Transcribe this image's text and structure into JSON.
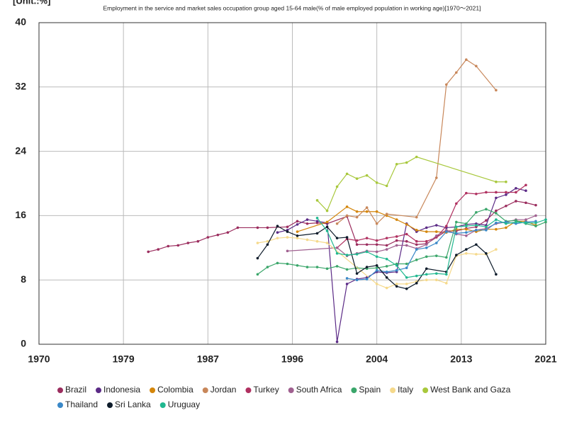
{
  "chart_data": {
    "type": "line",
    "title": "Employment in the service and market sales occupation group aged 15-64 male(% of male employed population in working age)[1970～2021]",
    "y_label": "[Unit.:%]",
    "xlim": [
      1970,
      2021
    ],
    "xticks": [
      1970,
      {
        "value": 1978.5,
        "label": "1979"
      },
      1987,
      {
        "value": 1995.5,
        "label": "1996"
      },
      2004,
      {
        "value": 2012.5,
        "label": "2013"
      },
      2021
    ],
    "ylim": [
      0,
      40
    ],
    "yticks": [
      0,
      8,
      16,
      24,
      32,
      40
    ],
    "grid": true,
    "legend": "bottom",
    "series": [
      {
        "name": "Brazil",
        "color": "#9b2d5e",
        "x": [
          1981,
          1982,
          1983,
          1984,
          1985,
          1986,
          1987,
          1988,
          1989,
          1990,
          1992,
          1993,
          1995,
          1996,
          1997,
          1998,
          1999,
          2001,
          2002,
          2003,
          2004,
          2005,
          2006,
          2007,
          2008,
          2009,
          2011,
          2012,
          2013,
          2014,
          2015,
          2016,
          2017,
          2018,
          2019,
          2020
        ],
        "values": [
          11.5,
          11.8,
          12.2,
          12.3,
          12.6,
          12.8,
          13.3,
          13.6,
          13.9,
          14.5,
          14.5,
          14.5,
          14.6,
          15.3,
          15.0,
          15.1,
          15.0,
          15.9,
          12.4,
          12.4,
          12.4,
          12.3,
          12.9,
          12.8,
          12.4,
          12.5,
          14.1,
          14.1,
          14.4,
          14.6,
          15.4,
          16.6,
          17.2,
          17.8,
          17.6,
          17.3
        ]
      },
      {
        "name": "Indonesia",
        "color": "#5b2a86",
        "x": [
          1994,
          1995,
          1996,
          1997,
          1998,
          1999,
          2000,
          2001,
          2002,
          2003,
          2004,
          2005,
          2006,
          2007,
          2008,
          2009,
          2010,
          2011,
          2012,
          2013,
          2014,
          2015,
          2016,
          2017,
          2018,
          2019
        ],
        "values": [
          13.9,
          14.2,
          14.9,
          15.5,
          15.3,
          15.1,
          0.3,
          7.5,
          8.1,
          8.3,
          9.0,
          8.9,
          9.0,
          15.0,
          14.0,
          14.5,
          14.8,
          14.5,
          14.6,
          14.9,
          15.0,
          14.8,
          18.2,
          18.6,
          19.4,
          19.1
        ]
      },
      {
        "name": "Colombia",
        "color": "#d4860b",
        "x": [
          1996,
          1999,
          2001,
          2002,
          2003,
          2004,
          2005,
          2006,
          2007,
          2008,
          2009,
          2010,
          2011,
          2012,
          2013,
          2014,
          2015,
          2016,
          2017,
          2018,
          2019,
          2020
        ],
        "values": [
          14.0,
          15.2,
          17.1,
          16.5,
          16.5,
          16.5,
          16.0,
          15.5,
          14.9,
          14.2,
          14.0,
          14.0,
          13.9,
          14.3,
          14.3,
          14.0,
          14.3,
          14.3,
          14.5,
          15.3,
          15.3,
          14.8
        ]
      },
      {
        "name": "Jordan",
        "color": "#c8875a",
        "x": [
          2000,
          2001,
          2002,
          2003,
          2004,
          2005,
          2008,
          2010,
          2011,
          2012,
          2013,
          2014,
          2016
        ],
        "values": [
          15.0,
          16.0,
          15.8,
          17.0,
          15.0,
          16.2,
          15.8,
          20.7,
          32.3,
          33.8,
          35.4,
          34.6,
          31.6
        ]
      },
      {
        "name": "Turkey",
        "color": "#b03060",
        "x": [
          2000,
          2001,
          2002,
          2003,
          2004,
          2005,
          2006,
          2007,
          2008,
          2009,
          2010,
          2011,
          2012,
          2013,
          2014,
          2015,
          2016,
          2017,
          2018,
          2019
        ],
        "values": [
          12.0,
          13.1,
          12.9,
          13.2,
          12.9,
          13.2,
          13.4,
          13.7,
          12.8,
          12.8,
          13.3,
          14.7,
          17.5,
          18.8,
          18.7,
          18.9,
          18.9,
          18.9,
          18.9,
          19.8
        ]
      },
      {
        "name": "South Africa",
        "color": "#a06090",
        "x": [
          1995,
          2000,
          2001,
          2002,
          2003,
          2004,
          2005,
          2006,
          2007,
          2008,
          2009,
          2010,
          2011,
          2012,
          2013,
          2014,
          2015,
          2016,
          2017,
          2018,
          2019,
          2020
        ],
        "values": [
          11.6,
          12.0,
          11.0,
          11.3,
          11.6,
          11.5,
          11.8,
          12.3,
          12.3,
          11.9,
          12.4,
          13.5,
          14.2,
          13.7,
          13.5,
          14.2,
          14.4,
          15.0,
          15.2,
          15.5,
          15.5,
          16.0
        ]
      },
      {
        "name": "Spain",
        "color": "#3aa66a",
        "x": [
          1992,
          1993,
          1994,
          1995,
          1996,
          1997,
          1998,
          1999,
          2000,
          2001,
          2002,
          2003,
          2004,
          2005,
          2006,
          2007,
          2008,
          2009,
          2010,
          2011,
          2012,
          2013,
          2014,
          2015,
          2016,
          2017,
          2018,
          2019,
          2020,
          2021
        ],
        "values": [
          8.7,
          9.6,
          10.1,
          10.0,
          9.8,
          9.6,
          9.6,
          9.4,
          9.7,
          9.3,
          9.5,
          9.4,
          9.5,
          9.7,
          10.0,
          10.0,
          10.5,
          10.9,
          11.0,
          10.8,
          15.2,
          15.0,
          16.4,
          16.8,
          16.3,
          15.3,
          15.4,
          15.0,
          14.7,
          15.2
        ]
      },
      {
        "name": "Italy",
        "color": "#f5d98b",
        "x": [
          1992,
          1993,
          1994,
          1995,
          1996,
          1997,
          1998,
          1999,
          2004,
          2005,
          2006,
          2007,
          2008,
          2009,
          2010,
          2011,
          2012,
          2013,
          2014,
          2015,
          2016
        ],
        "values": [
          12.6,
          12.8,
          13.2,
          13.3,
          13.2,
          13.0,
          12.8,
          12.6,
          7.5,
          7.0,
          7.5,
          7.5,
          7.8,
          8.0,
          8.0,
          7.6,
          11.0,
          11.3,
          11.2,
          11.2,
          11.8
        ]
      },
      {
        "name": "West Bank and Gaza",
        "color": "#a8c83c",
        "x": [
          1998,
          1999,
          2000,
          2001,
          2002,
          2003,
          2004,
          2005,
          2006,
          2007,
          2008,
          2016,
          2017
        ],
        "values": [
          17.9,
          16.6,
          19.6,
          21.2,
          20.6,
          21.0,
          20.1,
          19.7,
          22.4,
          22.6,
          23.3,
          20.2,
          20.2
        ]
      },
      {
        "name": "Thailand",
        "color": "#3a88c8",
        "x": [
          2001,
          2002,
          2003,
          2004,
          2005,
          2006,
          2007,
          2008,
          2009,
          2010,
          2011,
          2012,
          2013,
          2014,
          2015,
          2016,
          2017,
          2018,
          2019,
          2020
        ],
        "values": [
          8.2,
          8.0,
          8.1,
          9.2,
          9.0,
          9.2,
          9.5,
          11.8,
          12.0,
          12.6,
          14.0,
          13.8,
          13.9,
          14.2,
          14.2,
          15.1,
          15.2,
          15.0,
          15.2,
          15.3
        ]
      },
      {
        "name": "Sri Lanka",
        "color": "#0d1b2a",
        "x": [
          1992,
          1993,
          1994,
          1995,
          1996,
          1998,
          1999,
          2000,
          2001,
          2002,
          2003,
          2004,
          2005,
          2006,
          2007,
          2008,
          2009,
          2011,
          2012,
          2013,
          2014,
          2015,
          2016
        ],
        "values": [
          10.7,
          12.4,
          14.7,
          14.0,
          13.5,
          13.8,
          14.6,
          13.2,
          13.3,
          8.8,
          9.6,
          9.8,
          8.3,
          7.2,
          6.9,
          7.6,
          9.4,
          9.0,
          11.1,
          11.8,
          12.4,
          11.3,
          8.7
        ]
      },
      {
        "name": "Uruguay",
        "color": "#20b890",
        "x": [
          1998,
          1999,
          2000,
          2001,
          2002,
          2003,
          2004,
          2005,
          2006,
          2007,
          2008,
          2009,
          2010,
          2011,
          2012,
          2013,
          2014,
          2015,
          2016,
          2017,
          2018,
          2019,
          2020,
          2021
        ],
        "values": [
          15.7,
          14.1,
          11.3,
          11.1,
          11.2,
          11.5,
          10.9,
          10.6,
          9.8,
          8.3,
          8.5,
          8.7,
          8.8,
          8.7,
          14.6,
          14.7,
          14.8,
          14.6,
          15.5,
          15.0,
          15.2,
          15.1,
          15.1,
          15.5
        ]
      }
    ]
  }
}
